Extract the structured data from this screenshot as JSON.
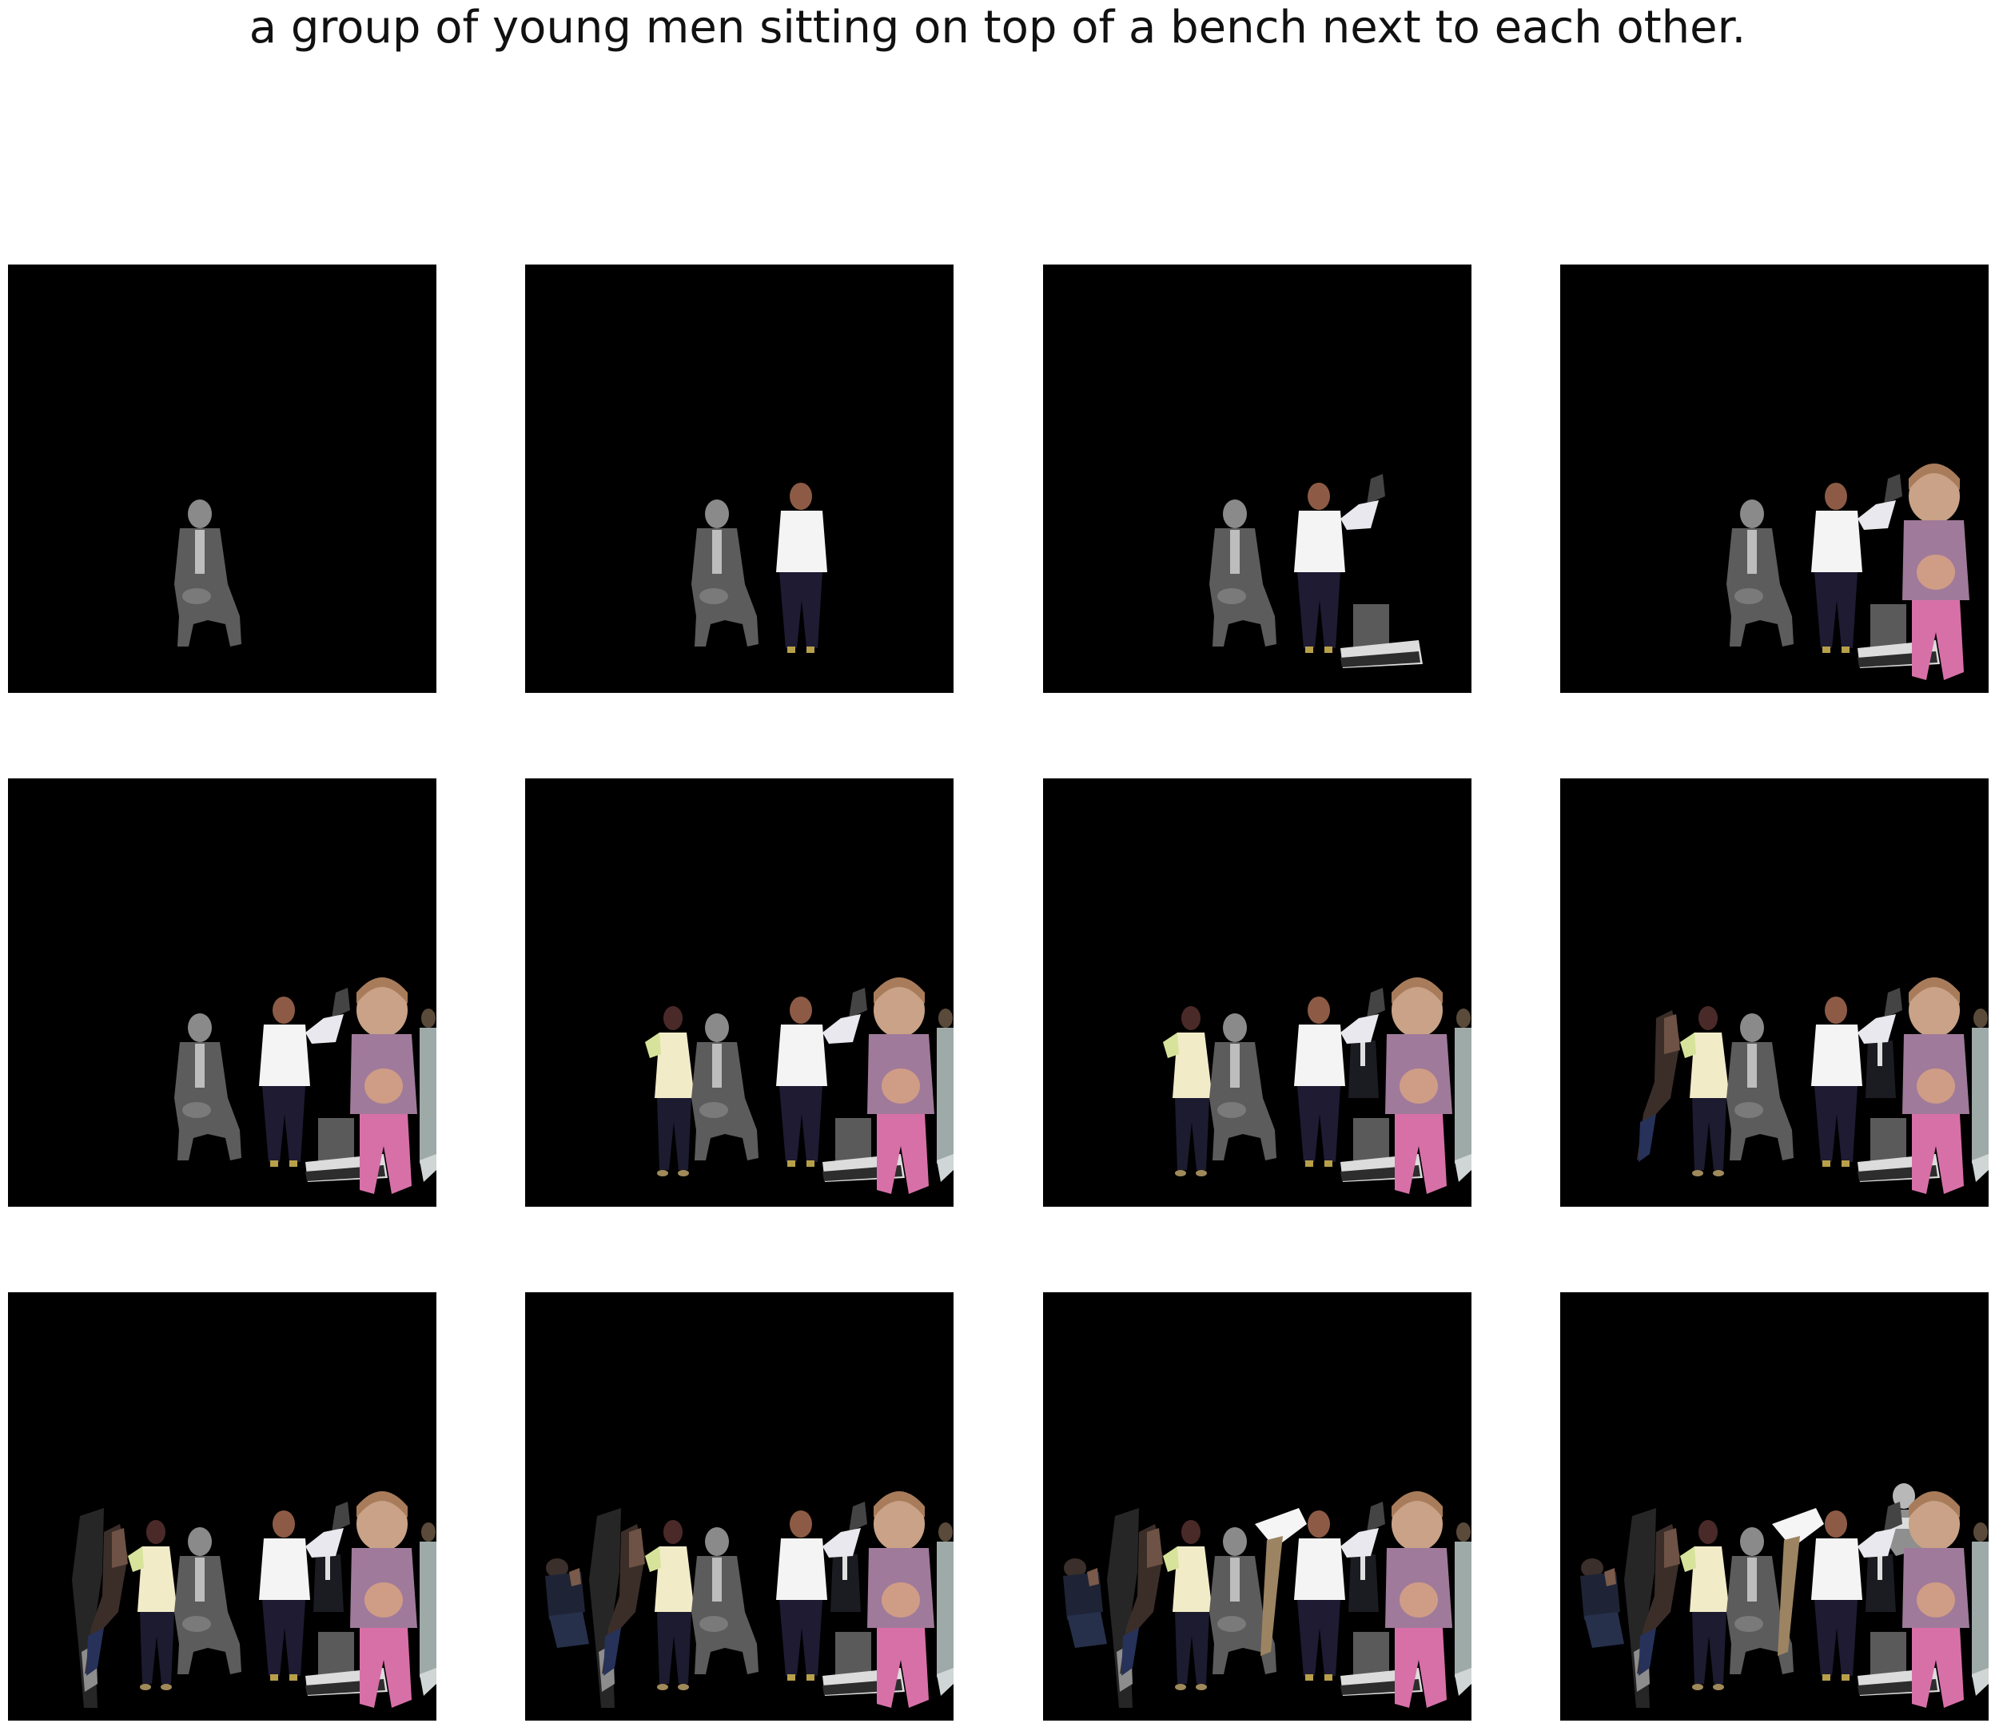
{
  "caption": "a group of young men sitting on top of a bench next to each other.",
  "panels": [
    {
      "step": 1,
      "figures": [
        "old-man"
      ]
    },
    {
      "step": 2,
      "figures": [
        "old-man",
        "young-man-white-shirt"
      ]
    },
    {
      "step": 3,
      "figures": [
        "old-man",
        "young-man-white-shirt",
        "sneakers-cutout"
      ]
    },
    {
      "step": 4,
      "figures": [
        "old-man",
        "young-man-white-shirt",
        "sneakers-cutout",
        "toddler-girl"
      ]
    },
    {
      "step": 5,
      "figures": [
        "old-man",
        "young-man-white-shirt",
        "sneakers-cutout",
        "toddler-girl",
        "edge-man"
      ]
    },
    {
      "step": 6,
      "figures": [
        "woman-cream-top",
        "old-man",
        "young-man-white-shirt",
        "sneakers-cutout",
        "toddler-girl",
        "edge-man"
      ]
    },
    {
      "step": 7,
      "figures": [
        "woman-cream-top",
        "old-man",
        "young-man-white-shirt",
        "suited-man",
        "sneakers-cutout",
        "toddler-girl",
        "edge-man"
      ]
    },
    {
      "step": 8,
      "figures": [
        "blurred-figure",
        "woman-cream-top",
        "old-man",
        "young-man-white-shirt",
        "suited-man",
        "sneakers-cutout",
        "toddler-girl",
        "edge-man"
      ]
    },
    {
      "step": 9,
      "figures": [
        "dark-cutout",
        "blurred-figure",
        "woman-cream-top",
        "old-man",
        "young-man-white-shirt",
        "suited-man",
        "sneakers-cutout",
        "toddler-girl",
        "edge-man"
      ]
    },
    {
      "step": 10,
      "figures": [
        "crouching-figure",
        "dark-cutout",
        "blurred-figure",
        "woman-cream-top",
        "old-man",
        "young-man-white-shirt",
        "suited-man",
        "sneakers-cutout",
        "toddler-girl",
        "edge-man"
      ]
    },
    {
      "step": 11,
      "figures": [
        "crouching-figure",
        "dark-cutout",
        "blurred-figure",
        "woman-cream-top",
        "old-man",
        "bending-figure",
        "young-man-white-shirt",
        "suited-man",
        "sneakers-cutout",
        "toddler-girl",
        "edge-man"
      ]
    },
    {
      "step": 12,
      "figures": [
        "crouching-figure",
        "dark-cutout",
        "blurred-figure",
        "woman-cream-top",
        "old-man",
        "bending-figure",
        "young-man-white-shirt",
        "grayscale-man",
        "suited-man",
        "sneakers-cutout",
        "toddler-girl",
        "edge-man"
      ]
    }
  ],
  "colors": {
    "panel_background": "#000000",
    "page_background": "#ffffff",
    "caption_text": "#111111"
  }
}
